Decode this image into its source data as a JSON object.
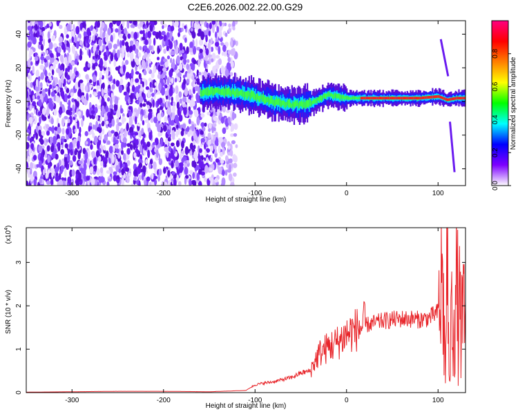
{
  "title": "C2E6.2026.002.22.00.G29",
  "chart_data": [
    {
      "type": "heatmap",
      "panel": "spectrogram",
      "xlabel": "Height of straight line (km)",
      "ylabel": "Frequency (Hz)",
      "xlim": [
        -350,
        130
      ],
      "ylim": [
        -50,
        48
      ],
      "xticks": [
        "-300",
        "-200",
        "-100",
        "0",
        "100"
      ],
      "yticks": [
        "-40",
        "-20",
        "0",
        "20",
        "40"
      ],
      "colorbar": {
        "label": "Normalized spectral amplitude",
        "range": [
          0,
          1
        ],
        "ticks": [
          "0.0",
          "0.2",
          "0.4",
          "0.6",
          "0.8"
        ],
        "colors": [
          "#ffffff",
          "#7d00ff",
          "#0000ff",
          "#00ffff",
          "#00ff00",
          "#ffff00",
          "#ff7f00",
          "#ff0000",
          "#ff0080"
        ]
      },
      "noise_region_x": [
        -350,
        -130
      ],
      "signal_track": {
        "x": [
          -160,
          -140,
          -120,
          -100,
          -80,
          -60,
          -40,
          -20,
          0,
          20,
          40,
          60,
          80,
          100,
          110,
          120,
          130
        ],
        "frequency": [
          5,
          6,
          5,
          3,
          0,
          -2,
          -1,
          4,
          2,
          2,
          2,
          2,
          2,
          3,
          1,
          2,
          2
        ]
      },
      "streaks": [
        {
          "x": [
            103,
            111
          ],
          "frequency": [
            37,
            15
          ]
        },
        {
          "x": [
            113,
            118
          ],
          "frequency": [
            -12,
            -42
          ]
        }
      ]
    },
    {
      "type": "line",
      "panel": "snr",
      "xlabel": "Height of straight line (km)",
      "ylabel": "SNR (10 * v/v)",
      "multiplier": "(x10",
      "multiplier_exp": "4",
      "xlim": [
        -350,
        130
      ],
      "ylim": [
        0,
        3.8
      ],
      "xticks": [
        "-300",
        "-200",
        "-100",
        "0",
        "100"
      ],
      "yticks": [
        "0",
        "1",
        "2",
        "3"
      ],
      "color": "#e8252a",
      "series": [
        {
          "x": [
            -350,
            -300,
            -250,
            -200,
            -150,
            -110,
            -100,
            -90,
            -80,
            -70,
            -60,
            -50,
            -40,
            -30,
            -20,
            -10,
            0,
            10,
            20,
            30,
            40,
            50,
            60,
            70,
            80,
            90,
            100,
            105,
            108,
            110,
            112,
            115,
            120,
            125,
            130
          ],
          "y": [
            0.01,
            0.02,
            0.03,
            0.03,
            0.02,
            0.05,
            0.18,
            0.22,
            0.25,
            0.3,
            0.35,
            0.45,
            0.5,
            0.9,
            1.05,
            1.15,
            1.35,
            1.45,
            1.55,
            1.6,
            1.65,
            1.68,
            1.7,
            1.7,
            1.68,
            1.72,
            1.85,
            2.6,
            0.4,
            3.5,
            0.2,
            1.8,
            2.2,
            1.6,
            1.6
          ]
        }
      ]
    }
  ]
}
